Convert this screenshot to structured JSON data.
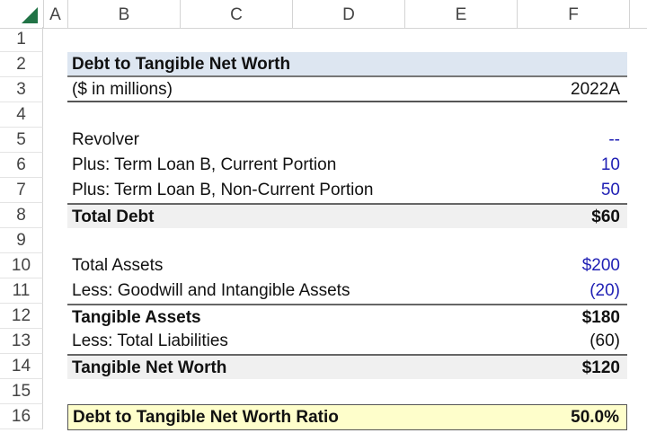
{
  "columns": [
    "A",
    "B",
    "C",
    "D",
    "E",
    "F"
  ],
  "row_numbers": [
    "1",
    "2",
    "3",
    "4",
    "5",
    "6",
    "7",
    "8",
    "9",
    "10",
    "11",
    "12",
    "13",
    "14",
    "15",
    "16"
  ],
  "title": "Debt to Tangible Net Worth",
  "units": "($ in millions)",
  "period": "2022A",
  "rows": [
    {
      "label": "Revolver",
      "value": "--"
    },
    {
      "label": "Plus: Term Loan B, Current Portion",
      "value": "10"
    },
    {
      "label": "Plus: Term Loan B, Non-Current Portion",
      "value": "50"
    },
    {
      "label": "Total Debt",
      "value": "$60"
    },
    {
      "label": "Total Assets",
      "value": "$200"
    },
    {
      "label": "Less: Goodwill and Intangible Assets",
      "value": "(20)"
    },
    {
      "label": "Tangible Assets",
      "value": "$180"
    },
    {
      "label": "Less: Total Liabilities",
      "value": "(60)"
    },
    {
      "label": "Tangible Net Worth",
      "value": "$120"
    },
    {
      "label": "Debt to Tangible Net Worth Ratio",
      "value": "50.0%"
    }
  ],
  "colors": {
    "input_blue": "#1f1fb4",
    "title_fill": "#dde6f1",
    "ratio_fill": "#fefecb",
    "excel_green": "#217346"
  }
}
